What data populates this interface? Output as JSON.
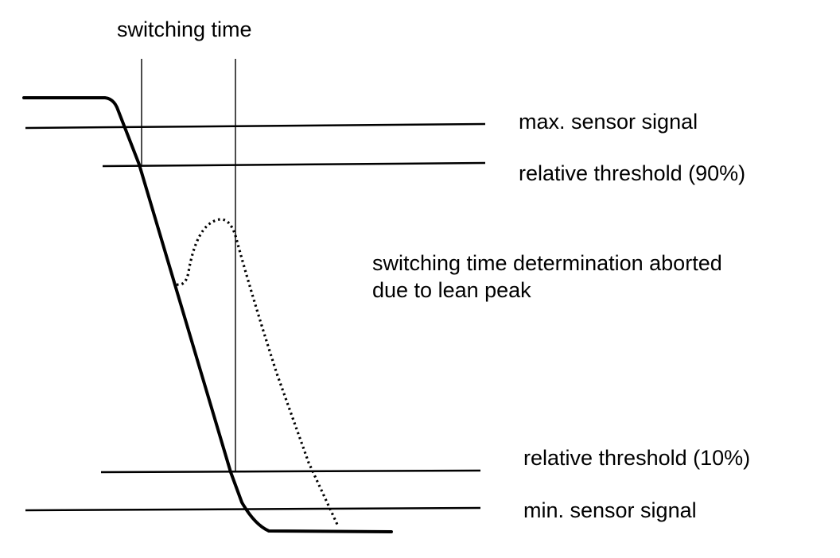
{
  "title": "switching time",
  "labels": {
    "max_sensor_signal": "max. sensor signal",
    "threshold_90": "relative threshold (90%)",
    "aborted_line1": "switching time determination aborted",
    "aborted_line2": "due to lean peak",
    "threshold_10": "relative threshold (10%)",
    "min_sensor_signal": "min. sensor signal"
  },
  "colors": {
    "ink": "#000000",
    "background": "#ffffff"
  }
}
